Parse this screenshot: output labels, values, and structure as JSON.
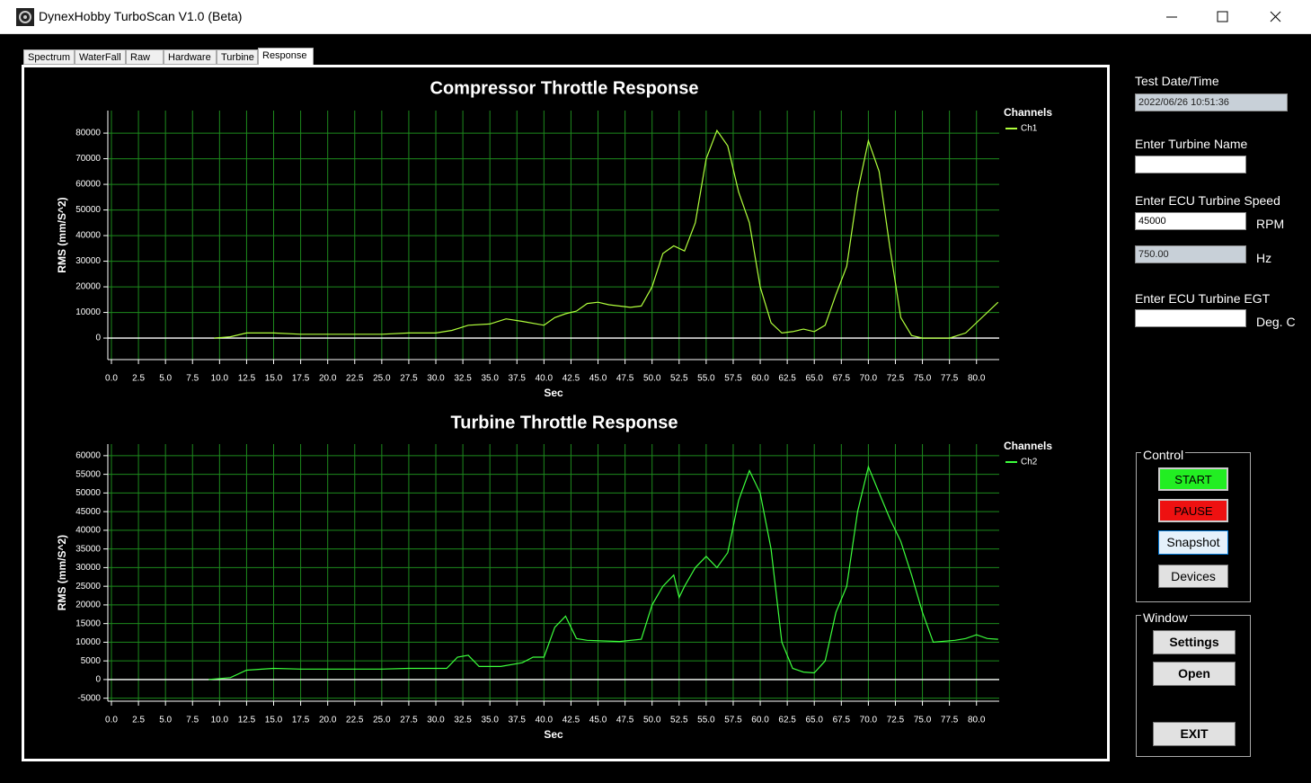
{
  "window": {
    "title": "DynexHobby TurboScan V1.0 (Beta)"
  },
  "tabs": [
    "Spectrum",
    "WaterFall",
    "Raw",
    "Hardware",
    "Turbine",
    "Response"
  ],
  "chart_data": [
    {
      "type": "line",
      "title": "Compressor Throttle Response",
      "xlabel": "Sec",
      "ylabel": "RMS (mm/S^2)",
      "legend_title": "Channels",
      "x": [
        9.5,
        11,
        12.5,
        15,
        17.5,
        20,
        25,
        27.5,
        30,
        31.5,
        33,
        35,
        36.5,
        38,
        40,
        41,
        42,
        43,
        44,
        45,
        46,
        48,
        49,
        50,
        51,
        52,
        53,
        54,
        55,
        56,
        57,
        58,
        59,
        60,
        61,
        62,
        63,
        64,
        65,
        66,
        67,
        68,
        69,
        70,
        71,
        72,
        73,
        74,
        75,
        77.5,
        79,
        80,
        82
      ],
      "series": [
        {
          "name": "Ch1",
          "color": "#b0ff3c",
          "values": [
            0,
            500,
            2000,
            2000,
            1500,
            1500,
            1500,
            2000,
            2000,
            3000,
            5000,
            5500,
            7500,
            6500,
            5000,
            8000,
            9500,
            10500,
            13500,
            14000,
            13000,
            12000,
            12500,
            20000,
            33000,
            36000,
            34000,
            45000,
            70000,
            81000,
            75000,
            57000,
            45000,
            20000,
            6000,
            2000,
            2500,
            3500,
            2500,
            5000,
            17000,
            28000,
            57000,
            77000,
            65000,
            35000,
            8000,
            1000,
            0,
            0,
            2000,
            6000,
            14000
          ]
        }
      ],
      "xlim": [
        0,
        82.1
      ],
      "ylim": [
        -8400,
        88800
      ],
      "xticks": [
        {
          "value": 0,
          "label": "0.0"
        },
        {
          "value": 2.5,
          "label": "2.5"
        },
        {
          "value": 5,
          "label": "5.0"
        },
        {
          "value": 7.5,
          "label": "7.5"
        },
        {
          "value": 10,
          "label": "10.0"
        },
        {
          "value": 12.5,
          "label": "12.5"
        },
        {
          "value": 15,
          "label": "15.0"
        },
        {
          "value": 17.5,
          "label": "17.5"
        },
        {
          "value": 20,
          "label": "20.0"
        },
        {
          "value": 22.5,
          "label": "22.5"
        },
        {
          "value": 25,
          "label": "25.0"
        },
        {
          "value": 27.5,
          "label": "27.5"
        },
        {
          "value": 30,
          "label": "30.0"
        },
        {
          "value": 32.5,
          "label": "32.5"
        },
        {
          "value": 35,
          "label": "35.0"
        },
        {
          "value": 37.5,
          "label": "37.5"
        },
        {
          "value": 40,
          "label": "40.0"
        },
        {
          "value": 42.5,
          "label": "42.5"
        },
        {
          "value": 45,
          "label": "45.0"
        },
        {
          "value": 47.5,
          "label": "47.5"
        },
        {
          "value": 50,
          "label": "50.0"
        },
        {
          "value": 52.5,
          "label": "52.5"
        },
        {
          "value": 55,
          "label": "55.0"
        },
        {
          "value": 57.5,
          "label": "57.5"
        },
        {
          "value": 60,
          "label": "60.0"
        },
        {
          "value": 62.5,
          "label": "62.5"
        },
        {
          "value": 65,
          "label": "65.0"
        },
        {
          "value": 67.5,
          "label": "67.5"
        },
        {
          "value": 70,
          "label": "70.0"
        },
        {
          "value": 72.5,
          "label": "72.5"
        },
        {
          "value": 75,
          "label": "75.0"
        },
        {
          "value": 77.5,
          "label": "77.5"
        },
        {
          "value": 80,
          "label": "80.0"
        }
      ],
      "yticks": [
        0,
        10000,
        20000,
        30000,
        40000,
        50000,
        60000,
        70000,
        80000
      ],
      "grid": true
    },
    {
      "type": "line",
      "title": "Turbine Throttle Response",
      "xlabel": "Sec",
      "ylabel": "RMS (mm/S^2)",
      "legend_title": "Channels",
      "x": [
        9,
        11,
        12.5,
        15,
        17.5,
        20,
        25,
        27.5,
        31,
        32,
        33,
        34,
        36,
        38,
        39,
        40,
        41,
        42,
        43,
        44,
        47,
        49,
        50,
        51,
        52,
        52.5,
        53,
        54,
        55,
        56,
        57,
        58,
        59,
        60,
        61,
        62,
        63,
        64,
        65,
        66,
        67,
        68,
        69,
        70,
        71,
        72,
        73,
        74,
        75,
        76,
        78,
        79,
        80,
        81,
        82
      ],
      "series": [
        {
          "name": "Ch2",
          "color": "#3cff3c",
          "values": [
            0,
            500,
            2500,
            3000,
            2800,
            2800,
            2800,
            3000,
            3000,
            6000,
            6500,
            3500,
            3500,
            4500,
            6000,
            6000,
            14000,
            17000,
            11000,
            10500,
            10200,
            10800,
            20000,
            25000,
            28000,
            22000,
            25000,
            30000,
            33000,
            30000,
            34000,
            48000,
            56000,
            50000,
            35000,
            10000,
            3000,
            2000,
            1800,
            5000,
            18000,
            25000,
            45000,
            57000,
            50000,
            43000,
            37000,
            28000,
            18000,
            10000,
            10500,
            11000,
            12000,
            11000,
            10800
          ]
        }
      ],
      "xlim": [
        0,
        82.1
      ],
      "ylim": [
        -5800,
        63100
      ],
      "xticks": [
        {
          "value": 0,
          "label": "0.0"
        },
        {
          "value": 2.5,
          "label": "2.5"
        },
        {
          "value": 5,
          "label": "5.0"
        },
        {
          "value": 7.5,
          "label": "7.5"
        },
        {
          "value": 10,
          "label": "10.0"
        },
        {
          "value": 12.5,
          "label": "12.5"
        },
        {
          "value": 15,
          "label": "15.0"
        },
        {
          "value": 17.5,
          "label": "17.5"
        },
        {
          "value": 20,
          "label": "20.0"
        },
        {
          "value": 22.5,
          "label": "22.5"
        },
        {
          "value": 25,
          "label": "25.0"
        },
        {
          "value": 27.5,
          "label": "27.5"
        },
        {
          "value": 30,
          "label": "30.0"
        },
        {
          "value": 32.5,
          "label": "32.5"
        },
        {
          "value": 35,
          "label": "35.0"
        },
        {
          "value": 37.5,
          "label": "37.5"
        },
        {
          "value": 40,
          "label": "40.0"
        },
        {
          "value": 42.5,
          "label": "42.5"
        },
        {
          "value": 45,
          "label": "45.0"
        },
        {
          "value": 47.5,
          "label": "47.5"
        },
        {
          "value": 50,
          "label": "50.0"
        },
        {
          "value": 52.5,
          "label": "52.5"
        },
        {
          "value": 55,
          "label": "55.0"
        },
        {
          "value": 57.5,
          "label": "57.5"
        },
        {
          "value": 60,
          "label": "60.0"
        },
        {
          "value": 62.5,
          "label": "62.5"
        },
        {
          "value": 65,
          "label": "65.0"
        },
        {
          "value": 67.5,
          "label": "67.5"
        },
        {
          "value": 70,
          "label": "70.0"
        },
        {
          "value": 72.5,
          "label": "72.5"
        },
        {
          "value": 75,
          "label": "75.0"
        },
        {
          "value": 77.5,
          "label": "77.5"
        },
        {
          "value": 80,
          "label": "80.0"
        }
      ],
      "yticks": [
        -5000,
        0,
        5000,
        10000,
        15000,
        20000,
        25000,
        30000,
        35000,
        40000,
        45000,
        50000,
        55000,
        60000
      ],
      "grid": true
    }
  ],
  "side_panel": {
    "datetime_label": "Test Date/Time",
    "datetime": "2022/06/26 10:51:36",
    "name_label": "Enter Turbine Name",
    "speed_label": "Enter ECU Turbine Speed",
    "rpm_value": "45000",
    "rpm_unit": "RPM",
    "hz_value": "750.00",
    "hz_unit": "Hz",
    "egt_label": "Enter ECU Turbine EGT",
    "egt_unit": "Deg. C"
  },
  "control": {
    "title": "Control",
    "buttons": [
      "START",
      "PAUSE",
      "Snapshot",
      "Devices"
    ]
  },
  "window_group": {
    "title": "Window",
    "buttons": [
      "Settings",
      "Open",
      "EXIT"
    ]
  }
}
